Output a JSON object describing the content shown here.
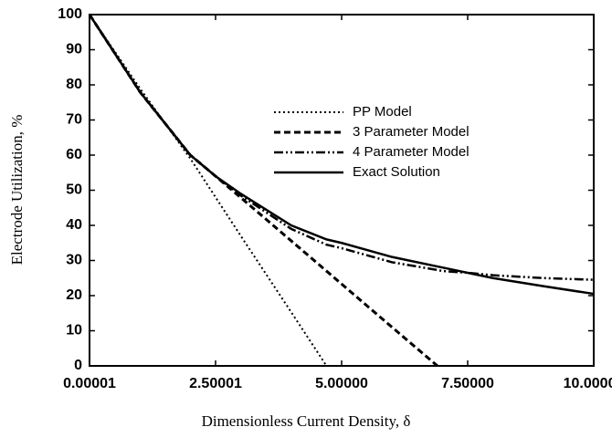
{
  "chart_data": {
    "type": "line",
    "xlabel": "Dimensionless Current Density, δ",
    "ylabel": "Electrode Utilization, %",
    "x": [
      1e-05,
      1,
      2,
      2.5,
      3,
      4,
      4.7,
      5,
      6,
      6.9,
      7,
      7.5,
      8,
      9,
      10
    ],
    "series": [
      {
        "name": "PP Model",
        "color": "#000000",
        "dash": "dotted",
        "values": [
          100,
          79,
          59,
          48,
          37,
          15.3,
          0,
          null,
          null,
          null,
          null,
          null,
          null,
          null,
          null
        ]
      },
      {
        "name": "3 Parameter Model",
        "color": "#000000",
        "dash": "dashed",
        "values": [
          100,
          78,
          60,
          54,
          47.9,
          35.6,
          27,
          23.3,
          11,
          0,
          null,
          null,
          null,
          null,
          null
        ]
      },
      {
        "name": "4 Parameter Model",
        "color": "#000000",
        "dash": "dash-dot-dot",
        "values": [
          100,
          78,
          60,
          54,
          48.5,
          39,
          34.5,
          33.5,
          29.5,
          27.3,
          27,
          26.5,
          25.8,
          25,
          24.5
        ]
      },
      {
        "name": "Exact Solution",
        "color": "#000000",
        "dash": "solid",
        "values": [
          100,
          78,
          60,
          54,
          49,
          40,
          36,
          35,
          31,
          28.3,
          28,
          26.5,
          25,
          22.7,
          20.5
        ]
      }
    ],
    "xlim": [
      1e-05,
      10
    ],
    "ylim": [
      0,
      100
    ],
    "xticks": [
      {
        "value": 1e-05,
        "label": "0.00001"
      },
      {
        "value": 2.50001,
        "label": "2.50001"
      },
      {
        "value": 5,
        "label": "5.00000"
      },
      {
        "value": 7.5,
        "label": "7.50000"
      },
      {
        "value": 10,
        "label": "10.00000"
      }
    ],
    "yticks": [
      0,
      10,
      20,
      30,
      40,
      50,
      60,
      70,
      80,
      90,
      100
    ],
    "legend": "top-right"
  }
}
